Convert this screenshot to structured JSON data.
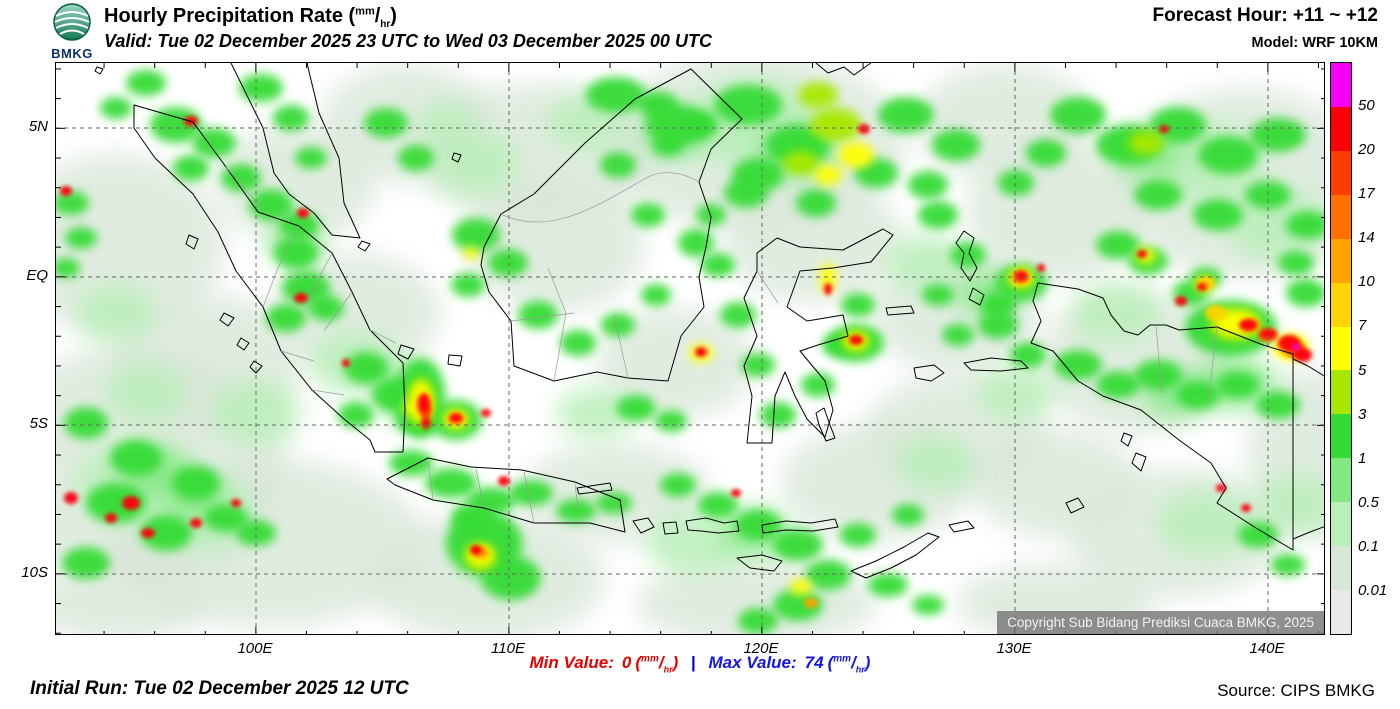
{
  "header": {
    "logo_label": "BMKG",
    "title": "Hourly Precipitation Rate ",
    "valid": "Valid: Tue 02 December 2025 23 UTC to Wed 03 December 2025 00 UTC",
    "forecast_hour": "Forecast Hour: +11 ~ +12",
    "model": "Model: WRF 10KM"
  },
  "units": {
    "open": "(",
    "num": "mm",
    "sep": "/",
    "den": "hr",
    "close": ")"
  },
  "map": {
    "lat_ticks": [
      "5N",
      "EQ",
      "5S",
      "10S"
    ],
    "lon_ticks": [
      "100E",
      "110E",
      "120E",
      "130E",
      "140E"
    ],
    "copyright": "Copyright Sub Bidang Prediksi Cuaca BMKG, 2025"
  },
  "legend": {
    "values": [
      "50",
      "20",
      "17",
      "14",
      "10",
      "7",
      "5",
      "3",
      "1",
      "0.5",
      "0.1",
      "0.01"
    ],
    "colors": [
      "#f400f4",
      "#fb0007",
      "#ff3c00",
      "#ff7000",
      "#ffa400",
      "#ffd400",
      "#ffff00",
      "#a8e800",
      "#35db35",
      "#82e882",
      "#b9efb9",
      "#d8e6d8",
      "#e8e8e8"
    ]
  },
  "footer": {
    "initial_run": "Initial Run: Tue 02 December 2025 12 UTC",
    "min_label": "Min Value:",
    "min_value": "0",
    "separator": "|",
    "max_label": "Max Value:",
    "max_value": "74",
    "source": "Source: CIPS BMKG"
  },
  "precip_cells": [
    [
      80,
      400,
      150,
      120,
      11
    ],
    [
      60,
      180,
      110,
      90,
      11
    ],
    [
      210,
      480,
      160,
      85,
      11
    ],
    [
      430,
      515,
      120,
      65,
      11
    ],
    [
      480,
      90,
      120,
      70,
      11
    ],
    [
      700,
      80,
      150,
      90,
      11
    ],
    [
      900,
      370,
      90,
      60,
      11
    ],
    [
      1000,
      420,
      85,
      55,
      11
    ],
    [
      1120,
      470,
      110,
      65,
      11
    ],
    [
      1190,
      120,
      130,
      95,
      11
    ],
    [
      1000,
      150,
      90,
      70,
      11
    ],
    [
      300,
      250,
      85,
      60,
      11
    ],
    [
      620,
      300,
      80,
      55,
      11
    ],
    [
      820,
      420,
      95,
      60,
      11
    ],
    [
      150,
      300,
      95,
      70,
      11
    ],
    [
      350,
      60,
      85,
      60,
      11
    ],
    [
      900,
      250,
      85,
      60,
      11
    ],
    [
      1255,
      390,
      65,
      85,
      11
    ],
    [
      560,
      430,
      95,
      50,
      11
    ],
    [
      760,
      180,
      90,
      60,
      11
    ],
    [
      1080,
      300,
      100,
      70,
      11
    ],
    [
      500,
      180,
      90,
      70,
      11
    ],
    [
      240,
      120,
      80,
      60,
      11
    ],
    [
      950,
      60,
      90,
      60,
      11
    ],
    [
      60,
      540,
      90,
      40,
      11
    ],
    [
      700,
      540,
      120,
      45,
      11
    ],
    [
      1000,
      540,
      100,
      40,
      11
    ],
    [
      80,
      420,
      60,
      42,
      10
    ],
    [
      150,
      450,
      50,
      38,
      10
    ],
    [
      60,
      250,
      40,
      30,
      10
    ],
    [
      1150,
      100,
      60,
      42,
      10
    ],
    [
      1220,
      160,
      50,
      38,
      10
    ],
    [
      700,
      60,
      70,
      45,
      10
    ],
    [
      880,
      400,
      40,
      28,
      10
    ],
    [
      1150,
      460,
      50,
      34,
      10
    ],
    [
      420,
      100,
      45,
      32,
      10
    ],
    [
      300,
      300,
      45,
      32,
      10
    ],
    [
      390,
      60,
      30,
      22,
      10
    ],
    [
      540,
      350,
      40,
      26,
      10
    ],
    [
      960,
      330,
      40,
      28,
      10
    ],
    [
      1060,
      250,
      45,
      30,
      10
    ],
    [
      200,
      350,
      45,
      32,
      10
    ],
    [
      90,
      330,
      40,
      30,
      10
    ],
    [
      640,
      480,
      50,
      32,
      10
    ],
    [
      870,
      200,
      40,
      28,
      10
    ],
    [
      1240,
      440,
      40,
      30,
      10
    ],
    [
      530,
      60,
      40,
      28,
      10
    ],
    [
      100,
      410,
      35,
      25,
      9
    ],
    [
      140,
      435,
      30,
      22,
      9
    ],
    [
      430,
      490,
      30,
      24,
      9
    ],
    [
      740,
      90,
      40,
      26,
      9
    ],
    [
      1090,
      90,
      35,
      25,
      9
    ],
    [
      1180,
      320,
      40,
      26,
      9
    ],
    [
      700,
      470,
      35,
      24,
      9
    ],
    [
      240,
      180,
      28,
      20,
      9
    ],
    [
      350,
      330,
      26,
      30,
      9
    ],
    [
      620,
      70,
      35,
      24,
      9
    ],
    [
      930,
      230,
      30,
      22,
      9
    ],
    [
      1120,
      330,
      35,
      24,
      9
    ],
    [
      120,
      62,
      26,
      18,
      8
    ],
    [
      158,
      80,
      22,
      15,
      8
    ],
    [
      135,
      105,
      18,
      13,
      8
    ],
    [
      185,
      115,
      20,
      14,
      8
    ],
    [
      215,
      142,
      22,
      16,
      8
    ],
    [
      243,
      162,
      20,
      14,
      8
    ],
    [
      240,
      190,
      22,
      16,
      8
    ],
    [
      250,
      225,
      24,
      17,
      8
    ],
    [
      230,
      255,
      20,
      14,
      8
    ],
    [
      270,
      245,
      18,
      13,
      8
    ],
    [
      205,
      25,
      22,
      14,
      8
    ],
    [
      235,
      55,
      18,
      13,
      8
    ],
    [
      255,
      95,
      16,
      11,
      8
    ],
    [
      310,
      305,
      22,
      16,
      8
    ],
    [
      340,
      332,
      24,
      17,
      8
    ],
    [
      300,
      352,
      18,
      13,
      8
    ],
    [
      360,
      357,
      20,
      14,
      8
    ],
    [
      365,
      335,
      24,
      40,
      8
    ],
    [
      400,
      357,
      26,
      20,
      8
    ],
    [
      355,
      400,
      22,
      13,
      8
    ],
    [
      395,
      420,
      26,
      15,
      8
    ],
    [
      435,
      438,
      24,
      14,
      8
    ],
    [
      475,
      430,
      22,
      13,
      8
    ],
    [
      520,
      448,
      20,
      12,
      8
    ],
    [
      558,
      440,
      18,
      11,
      8
    ],
    [
      428,
      480,
      38,
      32,
      8
    ],
    [
      455,
      515,
      30,
      22,
      8
    ],
    [
      415,
      455,
      20,
      15,
      8
    ],
    [
      420,
      172,
      24,
      17,
      8
    ],
    [
      452,
      200,
      20,
      14,
      8
    ],
    [
      412,
      222,
      17,
      12,
      8
    ],
    [
      482,
      252,
      20,
      14,
      8
    ],
    [
      522,
      280,
      18,
      13,
      8
    ],
    [
      562,
      262,
      17,
      12,
      8
    ],
    [
      600,
      232,
      15,
      11,
      8
    ],
    [
      592,
      152,
      17,
      12,
      8
    ],
    [
      562,
      102,
      18,
      13,
      8
    ],
    [
      612,
      82,
      16,
      11,
      8
    ],
    [
      602,
      42,
      20,
      14,
      8
    ],
    [
      645,
      62,
      17,
      12,
      8
    ],
    [
      560,
      32,
      30,
      18,
      8
    ],
    [
      622,
      62,
      32,
      20,
      8
    ],
    [
      692,
      42,
      34,
      20,
      8
    ],
    [
      742,
      82,
      32,
      20,
      8
    ],
    [
      702,
      112,
      26,
      17,
      8
    ],
    [
      850,
      52,
      28,
      18,
      8
    ],
    [
      900,
      82,
      24,
      16,
      8
    ],
    [
      872,
      122,
      20,
      14,
      8
    ],
    [
      662,
      202,
      17,
      12,
      8
    ],
    [
      682,
      252,
      18,
      13,
      8
    ],
    [
      702,
      302,
      17,
      12,
      8
    ],
    [
      722,
      352,
      18,
      13,
      8
    ],
    [
      762,
      322,
      17,
      12,
      8
    ],
    [
      782,
      282,
      16,
      11,
      8
    ],
    [
      802,
      242,
      17,
      12,
      8
    ],
    [
      800,
      280,
      28,
      19,
      8
    ],
    [
      640,
      180,
      18,
      14,
      8
    ],
    [
      655,
      152,
      15,
      11,
      8
    ],
    [
      882,
      152,
      20,
      14,
      8
    ],
    [
      912,
      192,
      18,
      13,
      8
    ],
    [
      882,
      232,
      16,
      11,
      8
    ],
    [
      942,
      242,
      18,
      13,
      8
    ],
    [
      902,
      272,
      16,
      11,
      8
    ],
    [
      965,
      220,
      26,
      19,
      8
    ],
    [
      1022,
      52,
      28,
      18,
      8
    ],
    [
      1072,
      82,
      32,
      20,
      8
    ],
    [
      1122,
      62,
      28,
      18,
      8
    ],
    [
      1172,
      92,
      30,
      19,
      8
    ],
    [
      1222,
      72,
      28,
      17,
      8
    ],
    [
      1102,
      132,
      24,
      15,
      8
    ],
    [
      1162,
      152,
      25,
      16,
      8
    ],
    [
      1212,
      132,
      23,
      14,
      8
    ],
    [
      1252,
      162,
      22,
      14,
      8
    ],
    [
      1062,
      182,
      22,
      14,
      8
    ],
    [
      1092,
      198,
      20,
      14,
      8
    ],
    [
      942,
      262,
      20,
      14,
      8
    ],
    [
      972,
      292,
      18,
      13,
      8
    ],
    [
      1022,
      302,
      24,
      15,
      8
    ],
    [
      1062,
      322,
      22,
      14,
      8
    ],
    [
      1102,
      312,
      24,
      15,
      8
    ],
    [
      1142,
      332,
      22,
      14,
      8
    ],
    [
      1182,
      322,
      21,
      13,
      8
    ],
    [
      1222,
      342,
      22,
      14,
      8
    ],
    [
      1175,
      265,
      46,
      28,
      8
    ],
    [
      1202,
      472,
      20,
      13,
      8
    ],
    [
      1232,
      502,
      17,
      11,
      8
    ],
    [
      622,
      422,
      18,
      12,
      8
    ],
    [
      662,
      442,
      20,
      13,
      8
    ],
    [
      702,
      462,
      23,
      15,
      8
    ],
    [
      742,
      482,
      25,
      16,
      8
    ],
    [
      772,
      512,
      23,
      15,
      8
    ],
    [
      742,
      542,
      25,
      16,
      8
    ],
    [
      702,
      558,
      20,
      13,
      8
    ],
    [
      802,
      472,
      18,
      12,
      8
    ],
    [
      852,
      452,
      16,
      11,
      8
    ],
    [
      832,
      522,
      20,
      12,
      8
    ],
    [
      872,
      542,
      16,
      10,
      8
    ],
    [
      580,
      345,
      20,
      13,
      8
    ],
    [
      615,
      358,
      16,
      11,
      8
    ],
    [
      330,
      60,
      22,
      15,
      8
    ],
    [
      360,
      95,
      18,
      13,
      8
    ],
    [
      90,
      20,
      20,
      13,
      8
    ],
    [
      60,
      45,
      16,
      11,
      8
    ],
    [
      15,
      140,
      18,
      12,
      8
    ],
    [
      25,
      175,
      16,
      11,
      8
    ],
    [
      10,
      205,
      14,
      10,
      8
    ],
    [
      30,
      360,
      22,
      16,
      8
    ],
    [
      80,
      395,
      26,
      18,
      8
    ],
    [
      140,
      420,
      24,
      17,
      8
    ],
    [
      60,
      440,
      30,
      20,
      8
    ],
    [
      110,
      470,
      26,
      18,
      8
    ],
    [
      170,
      455,
      22,
      14,
      8
    ],
    [
      30,
      500,
      24,
      16,
      8
    ],
    [
      200,
      470,
      20,
      13,
      8
    ],
    [
      690,
      130,
      22,
      15,
      8
    ],
    [
      760,
      140,
      20,
      14,
      8
    ],
    [
      820,
      110,
      22,
      15,
      8
    ],
    [
      1250,
      230,
      20,
      14,
      8
    ],
    [
      1240,
      200,
      18,
      12,
      8
    ],
    [
      990,
      90,
      20,
      14,
      8
    ],
    [
      960,
      120,
      18,
      13,
      8
    ],
    [
      1135,
      230,
      18,
      13,
      8
    ],
    [
      1150,
      215,
      16,
      11,
      8
    ],
    [
      780,
      62,
      26,
      17,
      7
    ],
    [
      762,
      32,
      20,
      13,
      7
    ],
    [
      745,
      100,
      18,
      12,
      7
    ],
    [
      1180,
      262,
      26,
      15,
      7
    ],
    [
      365,
      340,
      13,
      24,
      7
    ],
    [
      425,
      495,
      15,
      12,
      7
    ],
    [
      800,
      278,
      14,
      10,
      7
    ],
    [
      1090,
      80,
      18,
      12,
      7
    ],
    [
      800,
      92,
      18,
      13,
      6
    ],
    [
      772,
      112,
      14,
      10,
      6
    ],
    [
      365,
      338,
      11,
      20,
      6
    ],
    [
      400,
      356,
      13,
      10,
      6
    ],
    [
      424,
      492,
      14,
      11,
      6
    ],
    [
      745,
      524,
      11,
      8,
      6
    ],
    [
      645,
      290,
      12,
      9,
      6
    ],
    [
      800,
      278,
      11,
      8,
      6
    ],
    [
      1180,
      260,
      22,
      13,
      6
    ],
    [
      1090,
      193,
      10,
      8,
      6
    ],
    [
      772,
      215,
      8,
      15,
      6
    ],
    [
      355,
      345,
      8,
      6,
      6
    ],
    [
      415,
      190,
      8,
      6,
      6
    ],
    [
      1235,
      284,
      18,
      13,
      6
    ],
    [
      965,
      215,
      13,
      10,
      6
    ],
    [
      1148,
      222,
      9,
      7,
      6
    ],
    [
      1160,
      250,
      11,
      8,
      5
    ],
    [
      1150,
      220,
      9,
      7,
      5
    ],
    [
      965,
      215,
      10,
      8,
      5
    ],
    [
      1235,
      284,
      14,
      11,
      5
    ],
    [
      368,
      342,
      8,
      14,
      5
    ],
    [
      400,
      356,
      9,
      7,
      5
    ],
    [
      425,
      490,
      8,
      6,
      4
    ],
    [
      755,
      540,
      7,
      5,
      4
    ],
    [
      1237,
      285,
      11,
      9,
      4
    ],
    [
      1195,
      262,
      9,
      6,
      4
    ],
    [
      368,
      342,
      7,
      11,
      3
    ],
    [
      1212,
      272,
      10,
      7,
      3
    ],
    [
      1240,
      287,
      9,
      7,
      3
    ],
    [
      965,
      214,
      8,
      6,
      3
    ],
    [
      1240,
      286,
      7,
      6,
      2
    ],
    [
      370,
      348,
      5,
      8,
      2
    ],
    [
      135,
      58,
      7,
      5,
      1
    ],
    [
      247,
      150,
      6,
      5,
      1
    ],
    [
      245,
      235,
      7,
      5,
      1
    ],
    [
      15,
      435,
      7,
      6,
      1
    ],
    [
      75,
      440,
      9,
      7,
      1
    ],
    [
      92,
      470,
      7,
      5,
      1
    ],
    [
      140,
      460,
      6,
      5,
      1
    ],
    [
      10,
      128,
      6,
      5,
      1
    ],
    [
      368,
      340,
      5,
      9,
      1
    ],
    [
      370,
      360,
      5,
      6,
      1
    ],
    [
      400,
      355,
      7,
      5,
      1
    ],
    [
      420,
      487,
      6,
      5,
      1
    ],
    [
      680,
      430,
      5,
      4,
      1
    ],
    [
      645,
      289,
      6,
      5,
      1
    ],
    [
      800,
      277,
      7,
      5,
      1
    ],
    [
      772,
      226,
      4,
      6,
      1
    ],
    [
      808,
      66,
      6,
      5,
      1
    ],
    [
      1108,
      66,
      5,
      4,
      1
    ],
    [
      1086,
      191,
      5,
      4,
      1
    ],
    [
      1146,
      224,
      5,
      4,
      1
    ],
    [
      1125,
      238,
      6,
      5,
      1
    ],
    [
      1192,
      262,
      9,
      6,
      1
    ],
    [
      1212,
      271,
      8,
      5,
      1
    ],
    [
      1233,
      280,
      11,
      8,
      1
    ],
    [
      1247,
      292,
      9,
      7,
      1
    ],
    [
      1165,
      425,
      5,
      4,
      1
    ],
    [
      1190,
      445,
      5,
      4,
      1
    ],
    [
      965,
      213,
      6,
      5,
      1
    ],
    [
      985,
      205,
      4,
      4,
      1
    ],
    [
      55,
      455,
      6,
      5,
      1
    ],
    [
      180,
      440,
      5,
      4,
      1
    ],
    [
      290,
      300,
      4,
      4,
      1
    ],
    [
      448,
      418,
      6,
      5,
      1
    ],
    [
      430,
      350,
      5,
      4,
      1
    ],
    [
      1240,
      284,
      4,
      3,
      0
    ]
  ]
}
